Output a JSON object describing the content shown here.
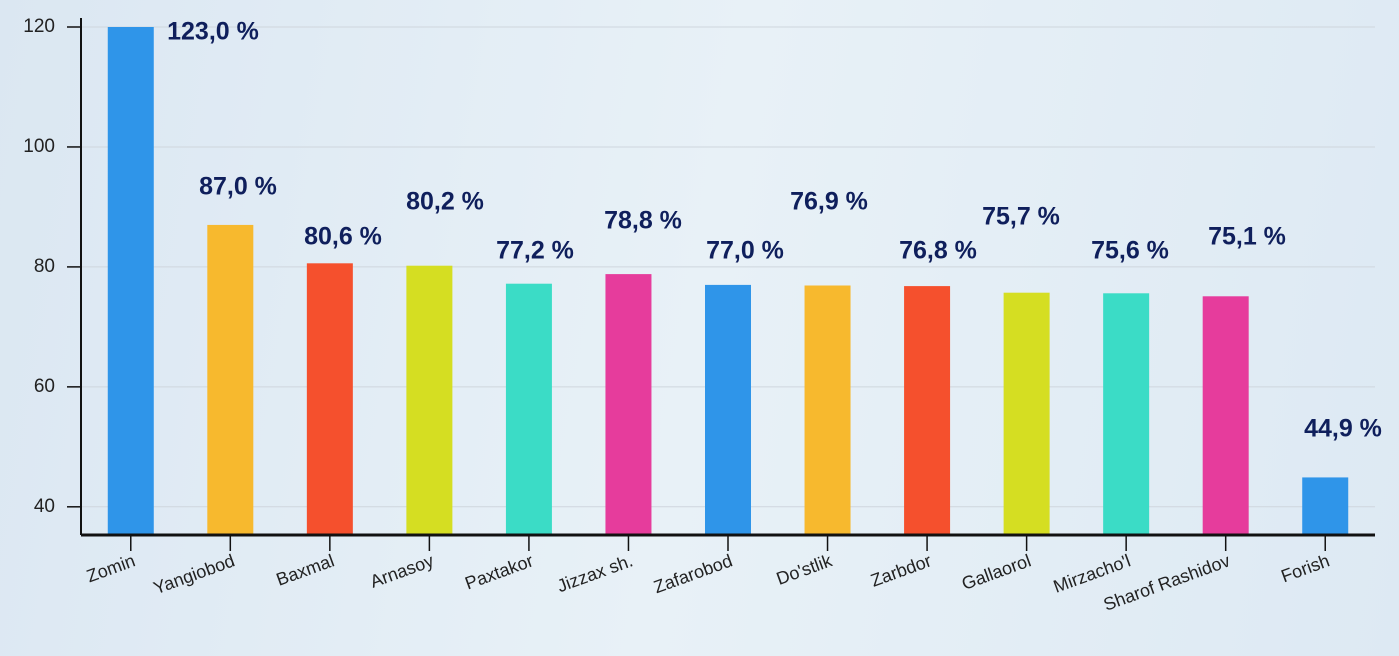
{
  "chart_data": {
    "type": "bar",
    "categories": [
      "Zomin",
      "Yangiobod",
      "Baxmal",
      "Arnasoy",
      "Paxtakor",
      "Jizzax sh.",
      "Zafarobod",
      "Do'stlik",
      "Zarbdor",
      "Gallaorol",
      "Mirzacho'l",
      "Sharof Rashidov",
      "Forish"
    ],
    "values": [
      123.0,
      87.0,
      80.6,
      80.2,
      77.2,
      78.8,
      77.0,
      76.9,
      76.8,
      75.7,
      75.6,
      75.1,
      44.9
    ],
    "value_labels": [
      "123,0 %",
      "87,0 %",
      "80,6 %",
      "80,2 %",
      "77,2 %",
      "78,8 %",
      "77,0 %",
      "76,9 %",
      "76,8 %",
      "75,7 %",
      "75,6 %",
      "75,1 %",
      "44,9 %"
    ],
    "colors": [
      "#2f95e9",
      "#f7b92e",
      "#f5502d",
      "#d5de22",
      "#3bdcc6",
      "#e63c9c",
      "#2f95e9",
      "#f7b92e",
      "#f5502d",
      "#d5de22",
      "#3bdcc6",
      "#e63c9c",
      "#2f95e9"
    ],
    "ylim": [
      35.3,
      120
    ],
    "yticks": [
      40,
      60,
      80,
      100,
      120
    ],
    "grid": true
  }
}
